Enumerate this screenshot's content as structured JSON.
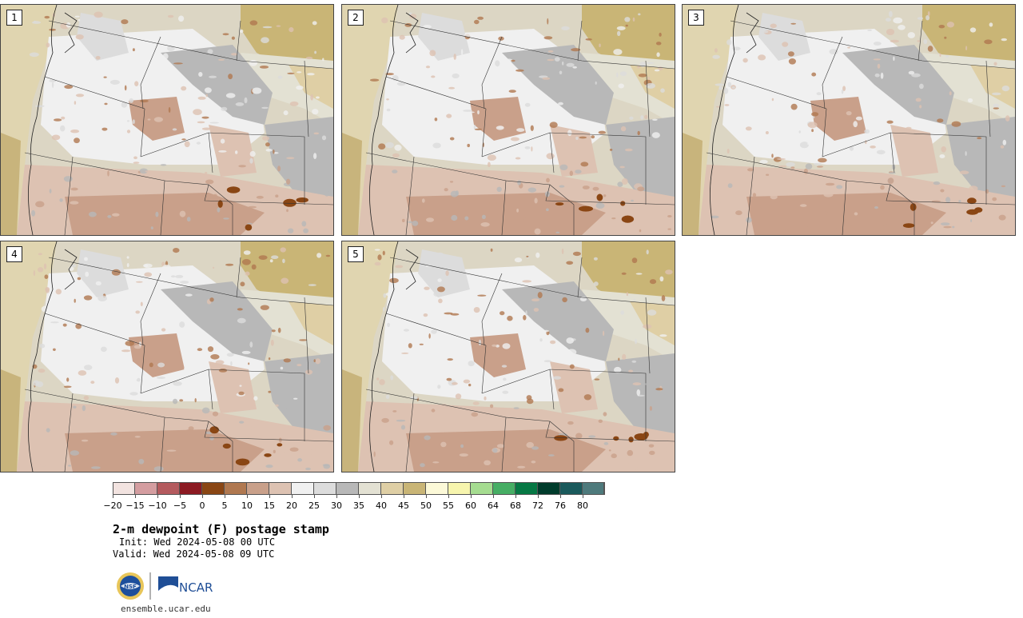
{
  "product": {
    "title": "2-m dewpoint (F) postage stamp",
    "init": "Init: Wed 2024-05-08 00 UTC",
    "valid": "Valid: Wed 2024-05-08 09 UTC",
    "website": "ensemble.ucar.edu",
    "logo_text": "NCAR"
  },
  "members": [
    "1",
    "2",
    "3",
    "4",
    "5"
  ],
  "colorbar": {
    "colors": [
      "#f2e3e0",
      "#d49da0",
      "#b45a5e",
      "#8c1a22",
      "#8a4614",
      "#b07850",
      "#c9a08a",
      "#ddc2b2",
      "#f0f0f0",
      "#dcdcdc",
      "#b8b8b8",
      "#e3e1d3",
      "#dfcfa5",
      "#c9b576",
      "#fcf9d8",
      "#f7f5ae",
      "#a5dc90",
      "#46ae64",
      "#067844",
      "#003c2c",
      "#1a5a5c",
      "#4e7a7c"
    ],
    "ticks": [
      "-20",
      "-15",
      "-10",
      "-5",
      "0",
      "5",
      "10",
      "15",
      "20",
      "25",
      "30",
      "35",
      "40",
      "45",
      "50",
      "55",
      "60",
      "64",
      "68",
      "72",
      "76",
      "80"
    ]
  }
}
